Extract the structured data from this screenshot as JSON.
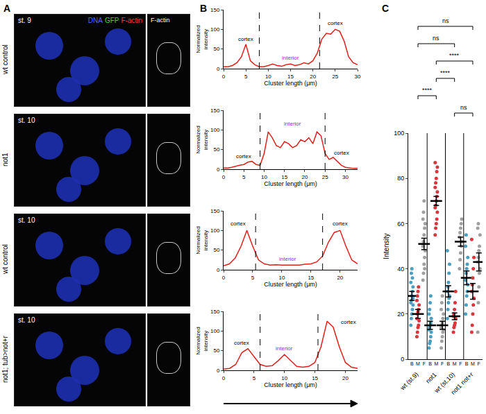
{
  "panel_labels": [
    "A",
    "B",
    "C"
  ],
  "image_panel": {
    "channels": [
      {
        "text": "DNA",
        "color": "#4a66ff"
      },
      {
        "text": "GFP",
        "color": "#3fd43f"
      },
      {
        "text": "F-actin",
        "color": "#ff3a3a"
      }
    ],
    "crop_label": "F-actin",
    "rows": [
      {
        "label": "wt control",
        "stage": "st. 9"
      },
      {
        "label": "not1",
        "stage": "st. 10"
      },
      {
        "label": "wt control",
        "stage": "st. 10"
      },
      {
        "label": "not1; tub>not+r",
        "stage": "st. 10"
      }
    ]
  },
  "chart_data": [
    {
      "type": "line",
      "color": "#e0201b",
      "xlabel": "Cluster length (μm)",
      "ylabel": "Normalized intensity",
      "x": [
        0,
        1,
        2,
        3,
        4,
        5,
        6,
        7,
        8,
        9,
        10,
        11,
        12,
        13,
        14,
        15,
        16,
        17,
        18,
        19,
        20,
        21,
        22,
        23,
        24,
        25,
        26,
        27,
        28,
        29,
        30
      ],
      "values": [
        5,
        5,
        8,
        15,
        30,
        62,
        20,
        10,
        5,
        5,
        8,
        12,
        8,
        6,
        10,
        12,
        8,
        10,
        15,
        12,
        20,
        40,
        75,
        90,
        88,
        100,
        95,
        70,
        30,
        15,
        10
      ],
      "xlim": [
        0,
        30
      ],
      "xticks": [
        0,
        5,
        10,
        15,
        20,
        25,
        30
      ],
      "ylim": [
        0,
        150
      ],
      "yticks": [
        0,
        50,
        100,
        150
      ],
      "dividers": [
        8,
        21.5
      ],
      "annotations": [
        {
          "text": "cortex",
          "x": 5,
          "y": 75,
          "color": "#000000"
        },
        {
          "text": "interior",
          "x": 15,
          "y": 28,
          "color": "#8b2be2"
        },
        {
          "text": "cortex",
          "x": 25,
          "y": 115,
          "color": "#000000"
        }
      ]
    },
    {
      "type": "line",
      "color": "#e0201b",
      "xlabel": "Cluster length (μm)",
      "ylabel": "Normalized intensity",
      "x": [
        0,
        1,
        2,
        3,
        4,
        5,
        6,
        7,
        8,
        9,
        10,
        11,
        12,
        13,
        14,
        15,
        16,
        17,
        18,
        19,
        20,
        21,
        22,
        23,
        24,
        25,
        26,
        27,
        28,
        29,
        30,
        31,
        32,
        33
      ],
      "values": [
        3,
        3,
        5,
        8,
        10,
        12,
        18,
        20,
        12,
        10,
        40,
        95,
        80,
        60,
        55,
        70,
        65,
        55,
        60,
        75,
        70,
        80,
        65,
        95,
        85,
        40,
        25,
        30,
        20,
        10,
        5,
        3,
        2,
        2
      ],
      "xlim": [
        0,
        33
      ],
      "xticks": [
        0,
        5,
        10,
        15,
        20,
        25,
        30
      ],
      "ylim": [
        0,
        150
      ],
      "yticks": [
        0,
        50,
        100,
        150
      ],
      "dividers": [
        9,
        25
      ],
      "annotations": [
        {
          "text": "cortex",
          "x": 5,
          "y": 32,
          "color": "#000000"
        },
        {
          "text": "interior",
          "x": 17,
          "y": 115,
          "color": "#8b2be2"
        },
        {
          "text": "cortex",
          "x": 29,
          "y": 42,
          "color": "#000000"
        }
      ]
    },
    {
      "type": "line",
      "color": "#e0201b",
      "xlabel": "Cluster length (μm)",
      "ylabel": "Normalized intensity",
      "x": [
        0,
        1,
        2,
        3,
        4,
        5,
        6,
        7,
        8,
        9,
        10,
        11,
        12,
        13,
        14,
        15,
        16,
        17,
        18,
        19,
        20,
        21,
        22,
        23
      ],
      "values": [
        10,
        15,
        30,
        60,
        100,
        60,
        25,
        15,
        12,
        13,
        12,
        12,
        13,
        12,
        14,
        15,
        20,
        35,
        70,
        95,
        100,
        60,
        25,
        15
      ],
      "xlim": [
        0,
        23
      ],
      "xticks": [
        0,
        5,
        10,
        15,
        20
      ],
      "ylim": [
        0,
        150
      ],
      "yticks": [
        0,
        50,
        100,
        150
      ],
      "dividers": [
        5.5,
        17
      ],
      "annotations": [
        {
          "text": "cortex",
          "x": 2.5,
          "y": 118,
          "color": "#000000"
        },
        {
          "text": "interior",
          "x": 11,
          "y": 28,
          "color": "#8b2be2"
        },
        {
          "text": "cortex",
          "x": 20,
          "y": 118,
          "color": "#000000"
        }
      ]
    },
    {
      "type": "line",
      "color": "#e0201b",
      "xlabel": "Cluster length (μm)",
      "ylabel": "Normalized intensity",
      "x": [
        0,
        1,
        2,
        3,
        4,
        5,
        6,
        7,
        8,
        9,
        10,
        11,
        12,
        13,
        14,
        15,
        16,
        17,
        18,
        19,
        20,
        21,
        22
      ],
      "values": [
        3,
        5,
        15,
        45,
        55,
        35,
        15,
        10,
        12,
        25,
        40,
        25,
        10,
        8,
        10,
        20,
        60,
        125,
        110,
        60,
        20,
        8,
        5
      ],
      "xlim": [
        0,
        22
      ],
      "xticks": [
        0,
        5,
        10,
        15,
        20
      ],
      "ylim": [
        0,
        150
      ],
      "yticks": [
        0,
        50,
        100,
        150
      ],
      "dividers": [
        6,
        15.5
      ],
      "annotations": [
        {
          "text": "cortex",
          "x": 3,
          "y": 70,
          "color": "#000000"
        },
        {
          "text": "interior",
          "x": 10,
          "y": 55,
          "color": "#8b2be2"
        },
        {
          "text": "cortex",
          "x": 20.5,
          "y": 122,
          "color": "#000000"
        }
      ]
    },
    {
      "type": "scatter",
      "ylabel": "Intensity",
      "ylim": [
        0,
        100
      ],
      "yticks": [
        0,
        20,
        40,
        60,
        80,
        100
      ],
      "groups": [
        "wt (st.9)",
        "not1",
        "wt (st.10)",
        "not1 not+r"
      ],
      "series": [
        {
          "name": "B",
          "color": "#4d9fbf",
          "values": [
            [
              15,
              18,
              20,
              22,
              24,
              25,
              26,
              28,
              30,
              32,
              34,
              38,
              40,
              36,
              27
            ],
            [
              5,
              7,
              8,
              10,
              12,
              13,
              14,
              15,
              16,
              18,
              20,
              22,
              25,
              28
            ],
            [
              18,
              22,
              25,
              27,
              28,
              30,
              32,
              34,
              38,
              42,
              48
            ],
            [
              20,
              24,
              28,
              30,
              33,
              35,
              38,
              40,
              42,
              45,
              50,
              55
            ]
          ],
          "mean": [
            28,
            15,
            30,
            36
          ],
          "error": [
            2,
            1.8,
            2.5,
            3
          ]
        },
        {
          "name": "M",
          "color": "#d9363e",
          "values": [
            [
              10,
              12,
              14,
              15,
              17,
              18,
              20,
              21,
              22,
              24,
              26,
              28,
              30,
              32
            ],
            [
              55,
              58,
              60,
              62,
              65,
              67,
              68,
              70,
              72,
              74,
              76,
              78,
              80,
              83,
              85,
              87
            ],
            [
              12,
              14,
              15,
              16,
              18,
              19,
              20,
              22,
              25,
              30
            ],
            [
              12,
              15,
              20,
              24,
              27,
              30,
              33,
              36,
              40,
              45,
              53
            ]
          ],
          "mean": [
            20,
            70,
            19,
            30
          ],
          "error": [
            2,
            2,
            1.5,
            3.5
          ]
        },
        {
          "name": "F",
          "color": "#a0a0a0",
          "values": [
            [
              35,
              38,
              42,
              45,
              48,
              50,
              52,
              55,
              58,
              60,
              62,
              65,
              70,
              40
            ],
            [
              5,
              8,
              10,
              12,
              13,
              14,
              15,
              16,
              18,
              20,
              22,
              25,
              28
            ],
            [
              40,
              44,
              47,
              50,
              52,
              54,
              56,
              58,
              60,
              62
            ],
            [
              12,
              25,
              32,
              38,
              40,
              43,
              45,
              48,
              50,
              55,
              58,
              60
            ]
          ],
          "mean": [
            51,
            15,
            52,
            43
          ],
          "error": [
            2.5,
            1.8,
            2,
            4
          ]
        }
      ],
      "significance": [
        {
          "from": "wt (st.9)",
          "to": "not1 not+r",
          "label": "ns"
        },
        {
          "from": "wt (st.9)",
          "to": "wt (st.10)",
          "label": "ns"
        },
        {
          "from": "not1",
          "to": "not1 not+r",
          "label": "****"
        },
        {
          "from": "not1",
          "to": "wt (st.10)",
          "label": "****"
        },
        {
          "from": "wt (st.9)",
          "to": "not1",
          "label": "****"
        },
        {
          "from": "wt (st.10)",
          "to": "not1 not+r",
          "label": "ns"
        }
      ]
    }
  ]
}
